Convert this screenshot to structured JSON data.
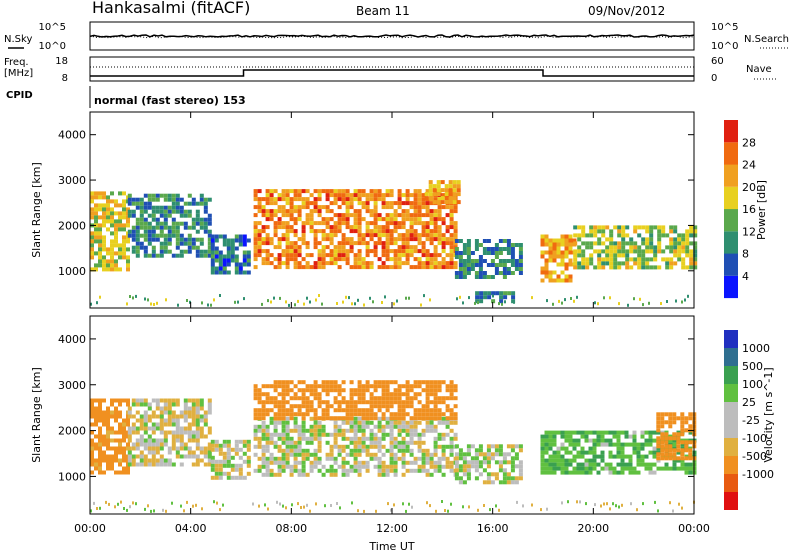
{
  "header": {
    "station": "Hankasalmi (fitACF)",
    "beam": "Beam 11",
    "date": "09/Nov/2012"
  },
  "strips": {
    "nsky_label": "N.Sky",
    "nsearch_label": "N.Search",
    "freq_label_1": "Freq.",
    "freq_label_2": "[MHz]",
    "nave_label": "Nave",
    "cpid_label": "CPID",
    "cpid_text": "normal (fast stereo) 153",
    "noise_ticks_left": [
      "10^5",
      "10^0"
    ],
    "noise_ticks_right": [
      "10^5",
      "10^0"
    ],
    "freq_ticks": [
      "18",
      "8"
    ],
    "nave_ticks": [
      "60",
      "0"
    ]
  },
  "colors": {
    "power_scale": [
      "#0a14ff",
      "#1f4fb4",
      "#2f8f70",
      "#5aa84c",
      "#e8d020",
      "#f0a020",
      "#f06a10",
      "#e02010"
    ],
    "velocity_scale": [
      "#e01010",
      "#e85a10",
      "#f09020",
      "#e0b040",
      "#bdbdbd",
      "#bdbdbd",
      "#60c040",
      "#3aa050",
      "#2f6f90",
      "#2030c0"
    ]
  },
  "chart_data": [
    {
      "type": "heatmap",
      "panel": "power",
      "xlabel": "Time UT",
      "ylabel": "Slant Range [km]",
      "xlim": [
        0,
        24
      ],
      "ylim": [
        180,
        4500
      ],
      "x_ticks": [
        "00:00",
        "04:00",
        "08:00",
        "12:00",
        "16:00",
        "20:00",
        "00:00"
      ],
      "y_ticks": [
        "1000",
        "2000",
        "3000",
        "4000"
      ],
      "colorbar_label": "Power [dB]",
      "colorbar_ticks": [
        "4",
        "8",
        "12",
        "16",
        "20",
        "24",
        "28"
      ],
      "regions": [
        {
          "t0": 0.0,
          "t1": 1.5,
          "r0": 1050,
          "r1": 2750,
          "level": 18
        },
        {
          "t0": 1.5,
          "t1": 4.8,
          "r0": 1300,
          "r1": 2700,
          "level": 10
        },
        {
          "t0": 4.8,
          "t1": 6.3,
          "r0": 1000,
          "r1": 1800,
          "level": 8
        },
        {
          "t0": 6.5,
          "t1": 14.5,
          "r0": 1050,
          "r1": 2800,
          "level": 24
        },
        {
          "t0": 13.3,
          "t1": 14.6,
          "r0": 2500,
          "r1": 3000,
          "level": 22
        },
        {
          "t0": 14.5,
          "t1": 17.2,
          "r0": 900,
          "r1": 1700,
          "level": 10
        },
        {
          "t0": 15.3,
          "t1": 16.8,
          "r0": 350,
          "r1": 550,
          "level": 9
        },
        {
          "t0": 17.9,
          "t1": 19.2,
          "r0": 750,
          "r1": 1800,
          "level": 22
        },
        {
          "t0": 19.2,
          "t1": 24.0,
          "r0": 1100,
          "r1": 2000,
          "level": 16
        }
      ]
    },
    {
      "type": "heatmap",
      "panel": "velocity",
      "xlabel": "Time UT",
      "ylabel": "Slant Range [km]",
      "xlim": [
        0,
        24
      ],
      "ylim": [
        180,
        4500
      ],
      "x_ticks": [
        "00:00",
        "04:00",
        "08:00",
        "12:00",
        "16:00",
        "20:00",
        "00:00"
      ],
      "y_ticks": [
        "1000",
        "2000",
        "3000",
        "4000"
      ],
      "colorbar_label": "Velocity [m s^-1]",
      "colorbar_ticks": [
        "1000",
        "500",
        "100",
        "25",
        "-25",
        "-100",
        "-500",
        "-1000"
      ],
      "regions": [
        {
          "t0": 0.0,
          "t1": 1.5,
          "r0": 1050,
          "r1": 2700,
          "level": -150
        },
        {
          "t0": 1.5,
          "t1": 4.8,
          "r0": 1300,
          "r1": 2700,
          "level": -20
        },
        {
          "t0": 4.8,
          "t1": 6.3,
          "r0": 1000,
          "r1": 1800,
          "level": 0
        },
        {
          "t0": 6.5,
          "t1": 14.5,
          "r0": 1050,
          "r1": 2300,
          "level": 0
        },
        {
          "t0": 6.5,
          "t1": 14.5,
          "r0": 2300,
          "r1": 3100,
          "level": -200
        },
        {
          "t0": 14.5,
          "t1": 17.2,
          "r0": 900,
          "r1": 1700,
          "level": 10
        },
        {
          "t0": 17.9,
          "t1": 24.0,
          "r0": 1100,
          "r1": 2000,
          "level": 80
        },
        {
          "t0": 22.5,
          "t1": 24.0,
          "r0": 1400,
          "r1": 2400,
          "level": -300
        }
      ]
    }
  ]
}
